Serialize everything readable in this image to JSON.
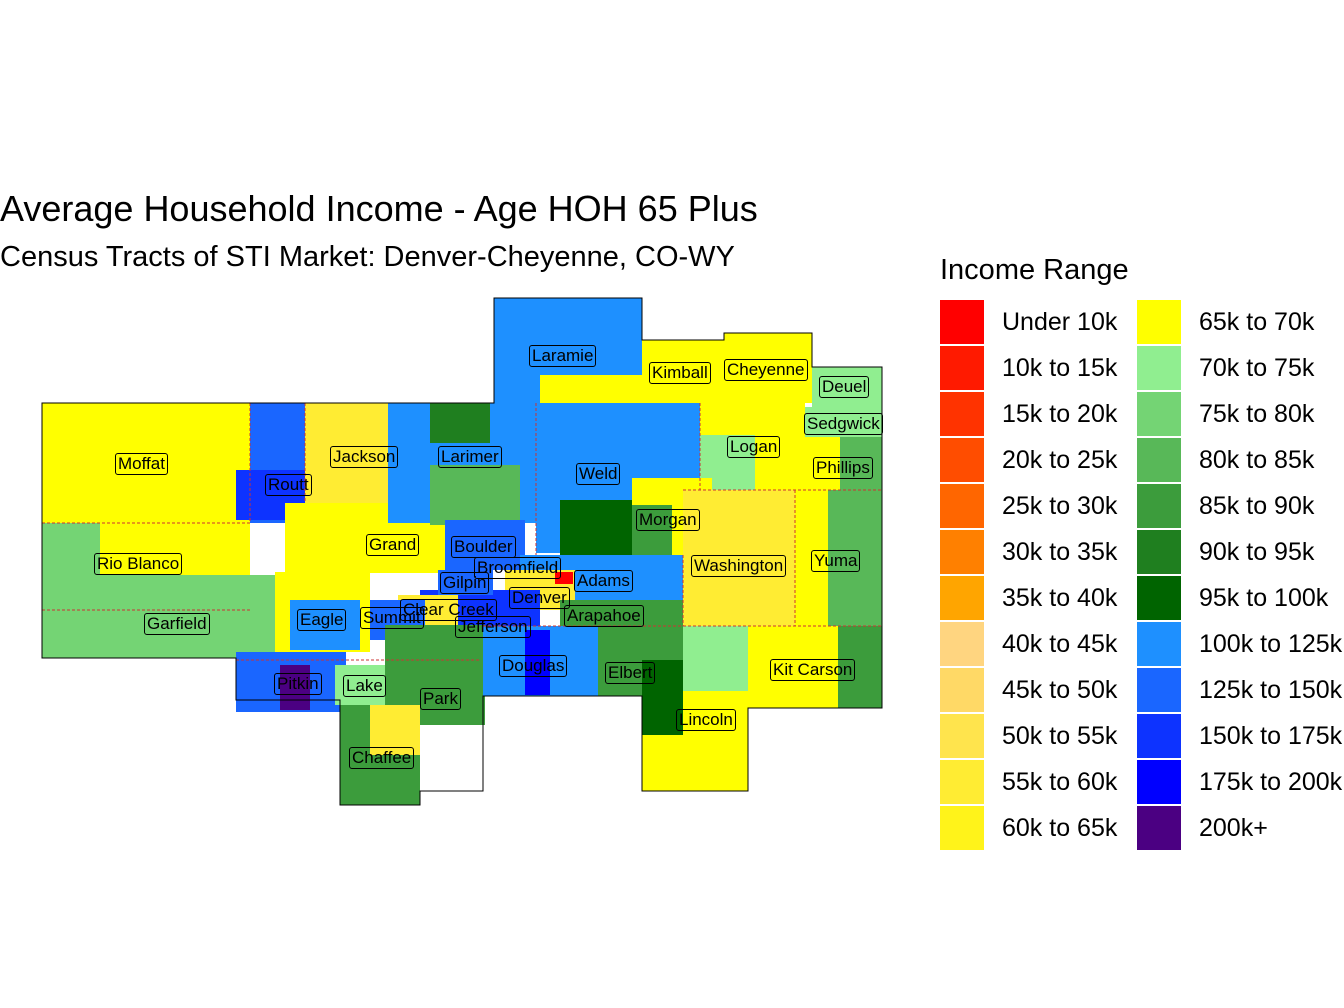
{
  "title": "Average Household Income - Age HOH 65 Plus",
  "subtitle": "Census Tracts of STI Market: Denver-Cheyenne, CO-WY",
  "legend": {
    "title": "Income Range",
    "items": [
      {
        "label": "Under 10k",
        "color": "#FF0000"
      },
      {
        "label": "10k to 15k",
        "color": "#FF1A00"
      },
      {
        "label": "15k to 20k",
        "color": "#FF3300"
      },
      {
        "label": "20k to 25k",
        "color": "#FF4D00"
      },
      {
        "label": "25k to 30k",
        "color": "#FF6600"
      },
      {
        "label": "30k to 35k",
        "color": "#FF8000"
      },
      {
        "label": "35k to 40k",
        "color": "#FFA500"
      },
      {
        "label": "40k to 45k",
        "color": "#FFD580"
      },
      {
        "label": "45k to 50k",
        "color": "#FFD966"
      },
      {
        "label": "50k to 55k",
        "color": "#FFE44D"
      },
      {
        "label": "55k to 60k",
        "color": "#FFEC33"
      },
      {
        "label": "60k to 65k",
        "color": "#FFF31A"
      },
      {
        "label": "65k to 70k",
        "color": "#FFFF00"
      },
      {
        "label": "70k to 75k",
        "color": "#90EE90"
      },
      {
        "label": "75k to 80k",
        "color": "#74D474"
      },
      {
        "label": "80k to 85k",
        "color": "#58B858"
      },
      {
        "label": "85k to 90k",
        "color": "#3C9C3C"
      },
      {
        "label": "90k to 95k",
        "color": "#1F7F1F"
      },
      {
        "label": "95k to 100k",
        "color": "#006400"
      },
      {
        "label": "100k to 125k",
        "color": "#1E90FF"
      },
      {
        "label": "125k to 150k",
        "color": "#1A66FF"
      },
      {
        "label": "150k to 175k",
        "color": "#0D33FF"
      },
      {
        "label": "175k to 200k",
        "color": "#0000FF"
      },
      {
        "label": "200k+",
        "color": "#4B0082"
      }
    ]
  },
  "counties": [
    "Laramie",
    "Kimball",
    "Cheyenne",
    "Deuel",
    "Sedgwick",
    "Moffat",
    "Routt",
    "Jackson",
    "Larimer",
    "Weld",
    "Logan",
    "Phillips",
    "Morgan",
    "Grand",
    "Boulder",
    "Broomfield",
    "Gilpin",
    "Adams",
    "Washington",
    "Yuma",
    "Rio Blanco",
    "Denver",
    "Clear Creek",
    "Eagle",
    "Summit",
    "Arapahoe",
    "Jefferson",
    "Garfield",
    "Douglas",
    "Elbert",
    "Kit Carson",
    "Pitkin",
    "Lake",
    "Park",
    "Lincoln",
    "Chaffee"
  ]
}
